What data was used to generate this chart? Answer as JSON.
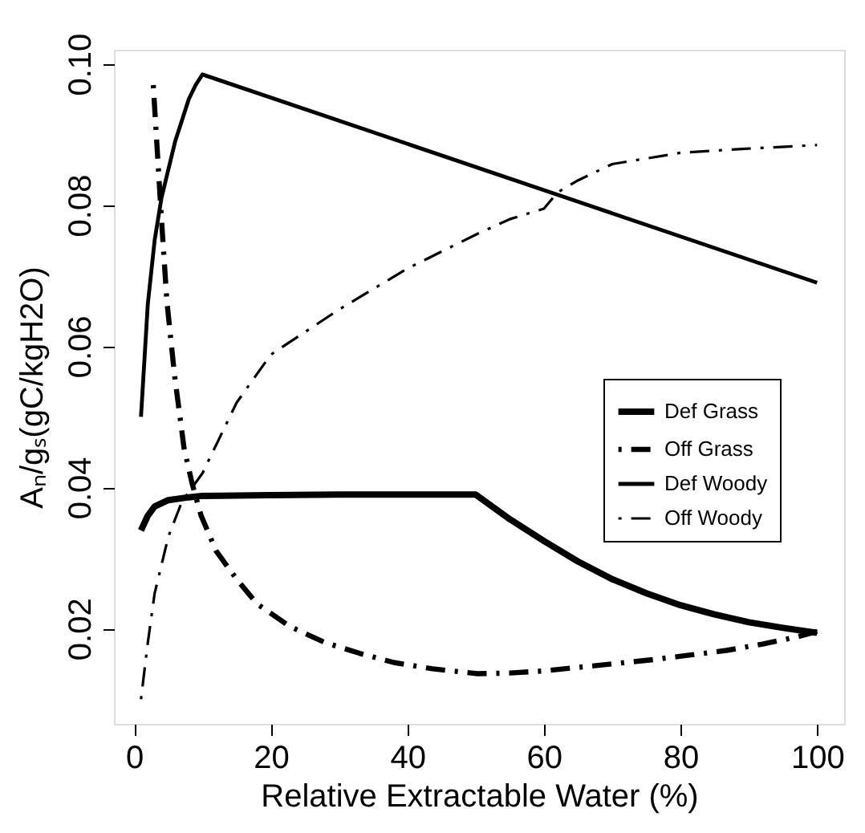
{
  "chart_data": {
    "type": "line",
    "xlabel": "Relative Extractable Water (%)",
    "ylabel": "Aₙ/gₛ(gC/kgH2O)",
    "xlim": [
      -2.96,
      103.96
    ],
    "xticks": [
      0,
      20,
      40,
      60,
      80,
      100
    ],
    "ylim": [
      0.0065,
      0.102
    ],
    "yticks": [
      0.02,
      0.04,
      0.06,
      0.08,
      {
        "value": 0.1,
        "label": "0.10"
      }
    ],
    "grid": false,
    "legend": "right",
    "marker": "none",
    "series": [
      {
        "name": "Def Grass",
        "color": "#000000",
        "line_style": "solid",
        "x": [
          1,
          2,
          3,
          5,
          8,
          10,
          20,
          30,
          40,
          50,
          55,
          60,
          65,
          70,
          75,
          80,
          85,
          90,
          95,
          100
        ],
        "values": [
          0.0339,
          0.036,
          0.0373,
          0.0382,
          0.0386,
          0.0388,
          0.0389,
          0.039,
          0.039,
          0.039,
          0.0355,
          0.0324,
          0.0295,
          0.027,
          0.025,
          0.0233,
          0.022,
          0.0209,
          0.0201,
          0.0194
        ]
      },
      {
        "name": "Off Grass",
        "color": "#000000",
        "line_style": "dashed",
        "x": [
          2.8,
          4,
          4.8,
          5.9,
          7.3,
          8.5,
          9.8,
          12,
          15,
          18,
          22.8,
          28,
          33,
          38,
          43.7,
          50.3,
          55,
          60,
          65,
          70,
          76,
          81,
          86.7,
          92,
          97,
          100
        ],
        "values": [
          0.097,
          0.078,
          0.0663,
          0.056,
          0.0456,
          0.0405,
          0.036,
          0.031,
          0.027,
          0.0235,
          0.0203,
          0.018,
          0.0165,
          0.0152,
          0.0143,
          0.0136,
          0.0137,
          0.014,
          0.0145,
          0.015,
          0.0156,
          0.0162,
          0.0169,
          0.0178,
          0.0188,
          0.0196
        ]
      },
      {
        "name": "Def Woody",
        "color": "#000000",
        "line_style": "solid",
        "x": [
          1,
          2,
          3,
          4,
          5,
          6,
          7,
          8,
          9,
          10,
          100
        ],
        "values": [
          0.05,
          0.066,
          0.075,
          0.081,
          0.085,
          0.089,
          0.092,
          0.095,
          0.097,
          0.0985,
          0.069
        ]
      },
      {
        "name": "Off Woody",
        "color": "#000000",
        "line_style": "dashed",
        "x": [
          1,
          2,
          3,
          5,
          7,
          10,
          15,
          20,
          25,
          30,
          40,
          50,
          55,
          60,
          62,
          65,
          70,
          80,
          90,
          100
        ],
        "values": [
          0.01,
          0.018,
          0.025,
          0.033,
          0.038,
          0.042,
          0.052,
          0.0588,
          0.062,
          0.0652,
          0.071,
          0.0758,
          0.078,
          0.0795,
          0.0818,
          0.0835,
          0.0858,
          0.0874,
          0.088,
          0.0885
        ]
      }
    ]
  }
}
